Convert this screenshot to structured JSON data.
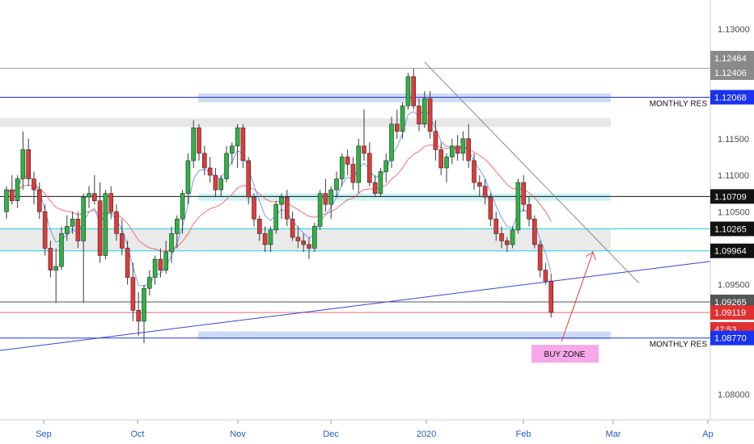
{
  "chart_data": {
    "type": "candlestick",
    "y_range": [
      1.0765,
      1.134
    ],
    "y_ticks": [
      "1.13000",
      "1.11500",
      "1.11000",
      "1.10500",
      "1.09500",
      "1.08000"
    ],
    "x_labels": [
      "Sep",
      "Oct",
      "Nov",
      "Dec",
      "2020",
      "Feb",
      "Mar",
      "Ap"
    ],
    "price_tags": [
      {
        "label": "1.12464",
        "value": 1.12464,
        "color": "#8a8a8a"
      },
      {
        "label": "1.12406",
        "value": 1.12406,
        "color": "#8a8a8a"
      },
      {
        "label": "1.12068",
        "value": 1.12068,
        "color": "#1a33f0"
      },
      {
        "label": "1.10709",
        "value": 1.10709,
        "color": "#111111"
      },
      {
        "label": "1.10265",
        "value": 1.10265,
        "color": "#111111"
      },
      {
        "label": "1.09964",
        "value": 1.09964,
        "color": "#111111"
      },
      {
        "label": "1.09265",
        "value": 1.09265,
        "color": "#555555"
      },
      {
        "label": "1.09119",
        "value": 1.09119,
        "color": "#e03030"
      },
      {
        "label": "47:53",
        "value": 1.0896,
        "color": "#e03030"
      },
      {
        "label": "1.08770",
        "value": 1.0877,
        "color": "#1a33f0"
      }
    ],
    "annotations": [
      {
        "text": "MONTHLY RES",
        "value": 1.12068
      },
      {
        "text": "MONTHLY RES",
        "value": 1.0877
      },
      {
        "text": "BUY ZONE",
        "value": 1.0872
      }
    ],
    "zones": [
      {
        "low": 1.12,
        "high": 1.1212,
        "color": "#c9d7f5"
      },
      {
        "low": 1.1166,
        "high": 1.1178,
        "color": "#e4e4e4"
      },
      {
        "low": 1.1065,
        "high": 1.1075,
        "color": "#c6f2f5"
      },
      {
        "low": 1.0996,
        "high": 1.1027,
        "color": "#e8e8e8"
      },
      {
        "low": 1.0875,
        "high": 1.0886,
        "color": "#c9d7f5"
      }
    ],
    "levels": [
      {
        "value": 1.12464,
        "color": "#9a9a9a"
      },
      {
        "value": 1.12068,
        "color": "#2233dd"
      },
      {
        "value": 1.10709,
        "color": "#111111"
      },
      {
        "value": 1.10265,
        "color": "#22d0e0"
      },
      {
        "value": 1.09964,
        "color": "#22d0e0"
      },
      {
        "value": 1.09265,
        "color": "#555555"
      },
      {
        "value": 1.09119,
        "color": "#ee6666"
      },
      {
        "value": 1.0877,
        "color": "#2233dd"
      }
    ],
    "trendlines": [
      {
        "color": "#3344dd",
        "points": [
          [
            0,
            1.086
          ],
          [
            130,
            1.0982
          ]
        ]
      },
      {
        "color": "#8a8a8a",
        "points": [
          [
            76,
            1.1255
          ],
          [
            115,
            1.0952
          ]
        ]
      }
    ],
    "candles": [
      [
        1.105,
        1.1085,
        1.104,
        1.108
      ],
      [
        1.108,
        1.11,
        1.106,
        1.1065
      ],
      [
        1.1065,
        1.11,
        1.1055,
        1.1095
      ],
      [
        1.1095,
        1.116,
        1.108,
        1.1135
      ],
      [
        1.1135,
        1.115,
        1.1085,
        1.1095
      ],
      [
        1.1095,
        1.1105,
        1.106,
        1.108
      ],
      [
        1.108,
        1.109,
        1.104,
        1.105
      ],
      [
        1.105,
        1.106,
        1.099,
        1.1
      ],
      [
        1.1,
        1.101,
        1.096,
        1.097
      ],
      [
        1.097,
        1.1,
        1.0925,
        1.0975
      ],
      [
        1.0975,
        1.103,
        1.097,
        1.102
      ],
      [
        1.102,
        1.1045,
        1.101,
        1.103
      ],
      [
        1.103,
        1.105,
        1.102,
        1.104
      ],
      [
        1.104,
        1.105,
        1.1,
        1.101
      ],
      [
        1.101,
        1.1075,
        1.0925,
        1.107
      ],
      [
        1.107,
        1.1085,
        1.1055,
        1.1075
      ],
      [
        1.1075,
        1.11,
        1.106,
        1.1065
      ],
      [
        1.1065,
        1.109,
        1.098,
        1.099
      ],
      [
        1.099,
        1.108,
        1.0985,
        1.1075
      ],
      [
        1.1075,
        1.1085,
        1.104,
        1.105
      ],
      [
        1.105,
        1.106,
        1.101,
        1.102
      ],
      [
        1.102,
        1.104,
        1.099,
        1.1
      ],
      [
        1.1,
        1.101,
        1.095,
        1.096
      ],
      [
        1.096,
        1.098,
        1.09,
        1.0915
      ],
      [
        1.0915,
        1.094,
        1.088,
        1.09
      ],
      [
        1.09,
        1.095,
        1.087,
        1.0945
      ],
      [
        1.0945,
        1.097,
        1.0935,
        1.096
      ],
      [
        1.096,
        1.099,
        1.095,
        1.0985
      ],
      [
        1.0985,
        1.1,
        1.096,
        1.097
      ],
      [
        1.097,
        1.101,
        1.0965,
        1.0995
      ],
      [
        1.0995,
        1.103,
        1.098,
        1.102
      ],
      [
        1.102,
        1.1045,
        1.1,
        1.104
      ],
      [
        1.104,
        1.108,
        1.102,
        1.1075
      ],
      [
        1.1075,
        1.113,
        1.106,
        1.112
      ],
      [
        1.112,
        1.1175,
        1.111,
        1.1165
      ],
      [
        1.1165,
        1.117,
        1.112,
        1.113
      ],
      [
        1.113,
        1.114,
        1.11,
        1.111
      ],
      [
        1.111,
        1.1125,
        1.109,
        1.11
      ],
      [
        1.11,
        1.111,
        1.107,
        1.108
      ],
      [
        1.108,
        1.11,
        1.107,
        1.1095
      ],
      [
        1.1095,
        1.114,
        1.109,
        1.113
      ],
      [
        1.113,
        1.1145,
        1.1115,
        1.114
      ],
      [
        1.114,
        1.117,
        1.111,
        1.1165
      ],
      [
        1.1165,
        1.117,
        1.111,
        1.112
      ],
      [
        1.112,
        1.1125,
        1.106,
        1.107
      ],
      [
        1.107,
        1.1075,
        1.103,
        1.104
      ],
      [
        1.104,
        1.1045,
        1.101,
        1.102
      ],
      [
        1.102,
        1.103,
        1.0995,
        1.1005
      ],
      [
        1.1005,
        1.103,
        1.0995,
        1.1025
      ],
      [
        1.1025,
        1.1065,
        1.102,
        1.106
      ],
      [
        1.106,
        1.1075,
        1.104,
        1.107
      ],
      [
        1.107,
        1.108,
        1.103,
        1.104
      ],
      [
        1.104,
        1.105,
        1.101,
        1.1015
      ],
      [
        1.1015,
        1.103,
        1.1,
        1.101
      ],
      [
        1.101,
        1.102,
        1.0995,
        1.1005
      ],
      [
        1.1005,
        1.1015,
        1.0985,
        1.1
      ],
      [
        1.1,
        1.1035,
        1.0995,
        1.103
      ],
      [
        1.103,
        1.108,
        1.1025,
        1.1075
      ],
      [
        1.1075,
        1.1095,
        1.105,
        1.106
      ],
      [
        1.106,
        1.1085,
        1.104,
        1.108
      ],
      [
        1.108,
        1.1105,
        1.107,
        1.1095
      ],
      [
        1.1095,
        1.113,
        1.1085,
        1.1125
      ],
      [
        1.1125,
        1.1135,
        1.11,
        1.1115
      ],
      [
        1.1115,
        1.1125,
        1.108,
        1.109
      ],
      [
        1.109,
        1.115,
        1.1075,
        1.114
      ],
      [
        1.114,
        1.119,
        1.112,
        1.113
      ],
      [
        1.113,
        1.1145,
        1.1085,
        1.109
      ],
      [
        1.109,
        1.11,
        1.107,
        1.1075
      ],
      [
        1.1075,
        1.111,
        1.107,
        1.1105
      ],
      [
        1.1105,
        1.113,
        1.109,
        1.112
      ],
      [
        1.112,
        1.118,
        1.111,
        1.117
      ],
      [
        1.117,
        1.119,
        1.115,
        1.116
      ],
      [
        1.116,
        1.12,
        1.115,
        1.1195
      ],
      [
        1.1195,
        1.124,
        1.119,
        1.1235
      ],
      [
        1.1235,
        1.1246,
        1.119,
        1.1195
      ],
      [
        1.1195,
        1.1205,
        1.116,
        1.117
      ],
      [
        1.117,
        1.1215,
        1.1165,
        1.1205
      ],
      [
        1.1205,
        1.1215,
        1.115,
        1.116
      ],
      [
        1.116,
        1.1175,
        1.112,
        1.1135
      ],
      [
        1.1135,
        1.1145,
        1.11,
        1.111
      ],
      [
        1.111,
        1.113,
        1.109,
        1.1125
      ],
      [
        1.1125,
        1.115,
        1.1115,
        1.114
      ],
      [
        1.114,
        1.1155,
        1.112,
        1.113
      ],
      [
        1.113,
        1.116,
        1.112,
        1.115
      ],
      [
        1.115,
        1.117,
        1.111,
        1.112
      ],
      [
        1.112,
        1.113,
        1.108,
        1.109
      ],
      [
        1.109,
        1.11,
        1.107,
        1.1085
      ],
      [
        1.1085,
        1.1095,
        1.106,
        1.107
      ],
      [
        1.107,
        1.1075,
        1.103,
        1.104
      ],
      [
        1.104,
        1.105,
        1.101,
        1.102
      ],
      [
        1.102,
        1.103,
        1.1,
        1.101
      ],
      [
        1.101,
        1.1015,
        1.0995,
        1.1005
      ],
      [
        1.1005,
        1.103,
        1.1,
        1.1025
      ],
      [
        1.1025,
        1.1095,
        1.102,
        1.109
      ],
      [
        1.109,
        1.11,
        1.105,
        1.106
      ],
      [
        1.106,
        1.107,
        1.103,
        1.104
      ],
      [
        1.104,
        1.1045,
        1.1,
        1.1005
      ],
      [
        1.1005,
        1.101,
        1.096,
        1.097
      ],
      [
        1.097,
        1.098,
        1.095,
        1.0955
      ],
      [
        1.0955,
        1.0965,
        1.0905,
        1.0912
      ]
    ],
    "red_arrow": {
      "from": [
        127,
        1.0872
      ],
      "to": [
        136,
        1.0995
      ]
    }
  }
}
